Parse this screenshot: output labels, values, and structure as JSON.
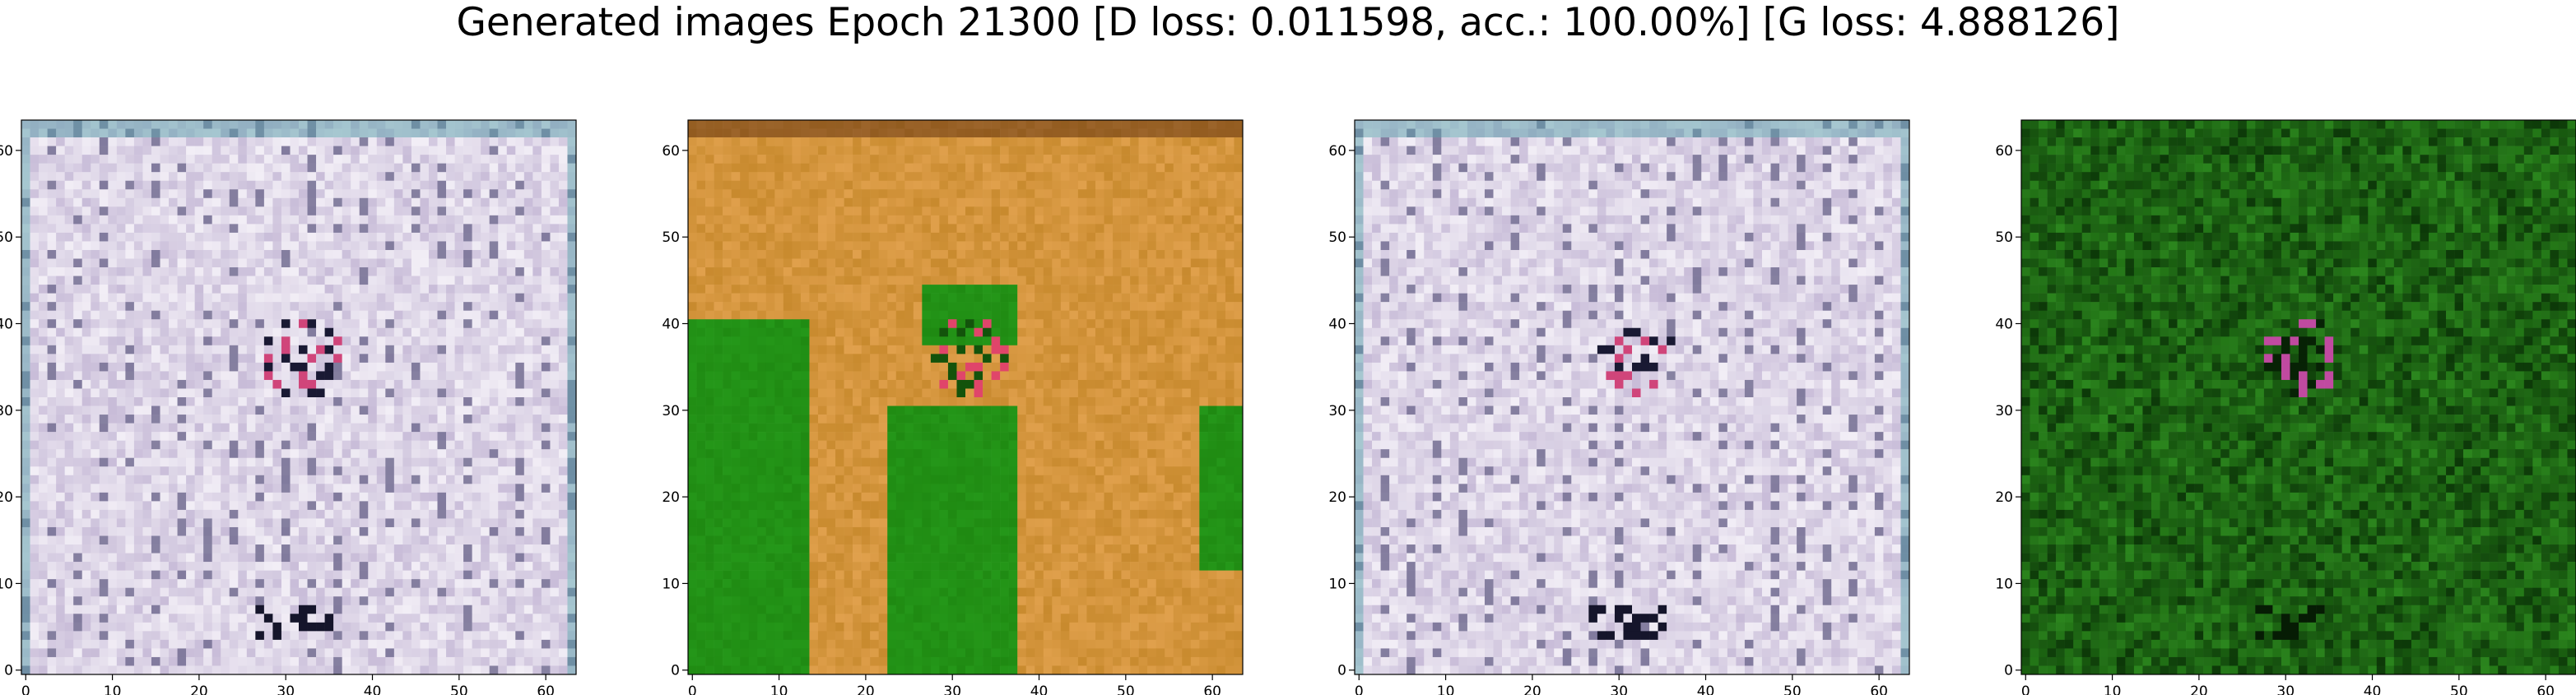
{
  "chart_data": {
    "title": "Generated images Epoch 21300 [D loss: 0.011598, acc.: 100.00%] [G loss: 4.888126]",
    "type": "heatmap",
    "subplots": [
      {
        "name": "",
        "palette": "lavender-white",
        "base": "#c8bcd8",
        "alt": "#f2eef6",
        "dark": "#2a2a55",
        "accent": "#d0457a"
      },
      {
        "name": "",
        "palette": "orange-green",
        "base": "#c88a2e",
        "alt": "#e0a04c",
        "dark": "#1f8a12",
        "accent": "#e0456a"
      },
      {
        "name": "",
        "palette": "lavender-white",
        "base": "#c8bcd8",
        "alt": "#f2eef6",
        "dark": "#2a2a55",
        "accent": "#d0457a"
      },
      {
        "name": "",
        "palette": "dark-green",
        "base": "#1e6e12",
        "alt": "#2f8f20",
        "dark": "#0c3808",
        "accent": "#c04aa0"
      }
    ],
    "x_ticks": [
      0,
      10,
      20,
      30,
      40,
      50,
      60
    ],
    "y_ticks": [
      0,
      10,
      20,
      30,
      40,
      50,
      60
    ],
    "xlim": [
      -0.5,
      63.5
    ],
    "ylim": [
      63.5,
      -0.5
    ],
    "grid": false,
    "legend": "none"
  }
}
